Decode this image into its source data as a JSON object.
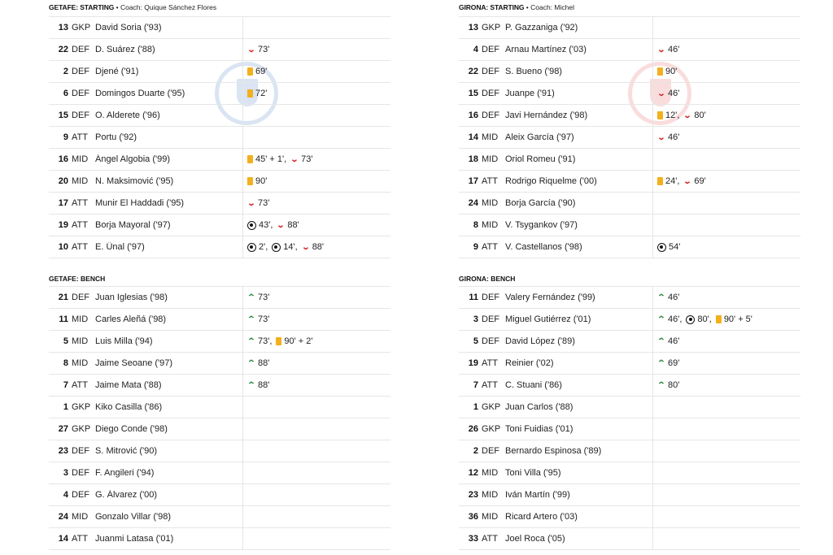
{
  "getafe": {
    "starting_title": "GETAFE: STARTING",
    "coach": "• Coach: Quique Sánchez Flores",
    "bench_title": "GETAFE: BENCH",
    "starting": [
      {
        "num": "13",
        "pos": "GKP",
        "name": "David Soria ('93)",
        "events": []
      },
      {
        "num": "22",
        "pos": "DEF",
        "name": "D. Suárez ('88)",
        "events": [
          {
            "icon": "sub-off-icon",
            "time": "73'"
          }
        ]
      },
      {
        "num": "2",
        "pos": "DEF",
        "name": "Djené ('91)",
        "events": [
          {
            "icon": "yellow-card-icon",
            "time": "69'"
          }
        ]
      },
      {
        "num": "6",
        "pos": "DEF",
        "name": "Domingos Duarte ('95)",
        "events": [
          {
            "icon": "yellow-card-icon",
            "time": "72'"
          }
        ]
      },
      {
        "num": "15",
        "pos": "DEF",
        "name": "O. Alderete ('96)",
        "events": []
      },
      {
        "num": "9",
        "pos": "ATT",
        "name": "Portu ('92)",
        "events": []
      },
      {
        "num": "16",
        "pos": "MID",
        "name": "Ángel Algobia ('99)",
        "events": [
          {
            "icon": "yellow-card-icon",
            "time": "45' + 1',"
          },
          {
            "icon": "sub-off-icon",
            "time": "73'"
          }
        ]
      },
      {
        "num": "20",
        "pos": "MID",
        "name": "N. Maksimović ('95)",
        "events": [
          {
            "icon": "yellow-card-icon",
            "time": "90'"
          }
        ]
      },
      {
        "num": "17",
        "pos": "ATT",
        "name": "Munir El Haddadi ('95)",
        "events": [
          {
            "icon": "sub-off-icon",
            "time": "73'"
          }
        ]
      },
      {
        "num": "19",
        "pos": "ATT",
        "name": "Borja Mayoral ('97)",
        "events": [
          {
            "icon": "goal-icon",
            "time": "43',"
          },
          {
            "icon": "sub-off-icon",
            "time": "88'"
          }
        ]
      },
      {
        "num": "10",
        "pos": "ATT",
        "name": "E. Ünal ('97)",
        "events": [
          {
            "icon": "goal-icon",
            "time": "2',"
          },
          {
            "icon": "goal-icon",
            "time": "14',"
          },
          {
            "icon": "sub-off-icon",
            "time": "88'"
          }
        ]
      }
    ],
    "bench": [
      {
        "num": "21",
        "pos": "DEF",
        "name": "Juan Iglesias ('98)",
        "events": [
          {
            "icon": "sub-on-icon",
            "time": "73'"
          }
        ]
      },
      {
        "num": "11",
        "pos": "MID",
        "name": "Carles Aleñá ('98)",
        "events": [
          {
            "icon": "sub-on-icon",
            "time": "73'"
          }
        ]
      },
      {
        "num": "5",
        "pos": "MID",
        "name": "Luis Milla ('94)",
        "events": [
          {
            "icon": "sub-on-icon",
            "time": "73',"
          },
          {
            "icon": "yellow-card-icon",
            "time": "90' + 2'"
          }
        ]
      },
      {
        "num": "8",
        "pos": "MID",
        "name": "Jaime Seoane ('97)",
        "events": [
          {
            "icon": "sub-on-icon",
            "time": "88'"
          }
        ]
      },
      {
        "num": "7",
        "pos": "ATT",
        "name": "Jaime Mata ('88)",
        "events": [
          {
            "icon": "sub-on-icon",
            "time": "88'"
          }
        ]
      },
      {
        "num": "1",
        "pos": "GKP",
        "name": "Kiko Casilla ('86)",
        "events": []
      },
      {
        "num": "27",
        "pos": "GKP",
        "name": "Diego Conde ('98)",
        "events": []
      },
      {
        "num": "23",
        "pos": "DEF",
        "name": "S. Mitrović ('90)",
        "events": []
      },
      {
        "num": "3",
        "pos": "DEF",
        "name": "F. Angileri ('94)",
        "events": []
      },
      {
        "num": "4",
        "pos": "DEF",
        "name": "G. Álvarez ('00)",
        "events": []
      },
      {
        "num": "24",
        "pos": "MID",
        "name": "Gonzalo Villar ('98)",
        "events": []
      },
      {
        "num": "14",
        "pos": "ATT",
        "name": "Juanmi Latasa ('01)",
        "events": []
      }
    ]
  },
  "girona": {
    "starting_title": "GIRONA: STARTING",
    "coach": "• Coach: Michel",
    "bench_title": "GIRONA: BENCH",
    "starting": [
      {
        "num": "13",
        "pos": "GKP",
        "name": "P. Gazzaniga ('92)",
        "events": []
      },
      {
        "num": "4",
        "pos": "DEF",
        "name": "Arnau Martínez ('03)",
        "events": [
          {
            "icon": "sub-off-icon",
            "time": "46'"
          }
        ]
      },
      {
        "num": "22",
        "pos": "DEF",
        "name": "S. Bueno ('98)",
        "events": [
          {
            "icon": "yellow-card-icon",
            "time": "90'"
          }
        ]
      },
      {
        "num": "15",
        "pos": "DEF",
        "name": "Juanpe ('91)",
        "events": [
          {
            "icon": "sub-off-icon",
            "time": "46'"
          }
        ]
      },
      {
        "num": "16",
        "pos": "DEF",
        "name": "Javi Hernández ('98)",
        "events": [
          {
            "icon": "yellow-card-icon",
            "time": "12',"
          },
          {
            "icon": "sub-off-icon",
            "time": "80'"
          }
        ]
      },
      {
        "num": "14",
        "pos": "MID",
        "name": "Aleix García ('97)",
        "events": [
          {
            "icon": "sub-off-icon",
            "time": "46'"
          }
        ]
      },
      {
        "num": "18",
        "pos": "MID",
        "name": "Oriol Romeu ('91)",
        "events": []
      },
      {
        "num": "17",
        "pos": "ATT",
        "name": "Rodrigo Riquelme ('00)",
        "events": [
          {
            "icon": "yellow-card-icon",
            "time": "24',"
          },
          {
            "icon": "sub-off-icon",
            "time": "69'"
          }
        ]
      },
      {
        "num": "24",
        "pos": "MID",
        "name": "Borja García ('90)",
        "events": []
      },
      {
        "num": "8",
        "pos": "MID",
        "name": "V. Tsygankov ('97)",
        "events": []
      },
      {
        "num": "9",
        "pos": "ATT",
        "name": "V. Castellanos ('98)",
        "events": [
          {
            "icon": "goal-icon",
            "time": "54'"
          }
        ]
      }
    ],
    "bench": [
      {
        "num": "11",
        "pos": "DEF",
        "name": "Valery Fernández ('99)",
        "events": [
          {
            "icon": "sub-on-icon",
            "time": "46'"
          }
        ]
      },
      {
        "num": "3",
        "pos": "DEF",
        "name": "Miguel Gutiérrez ('01)",
        "events": [
          {
            "icon": "sub-on-icon",
            "time": "46',"
          },
          {
            "icon": "goal-icon",
            "time": "80',"
          },
          {
            "icon": "yellow-card-icon",
            "time": "90' + 5'"
          }
        ]
      },
      {
        "num": "5",
        "pos": "DEF",
        "name": "David López ('89)",
        "events": [
          {
            "icon": "sub-on-icon",
            "time": "46'"
          }
        ]
      },
      {
        "num": "19",
        "pos": "ATT",
        "name": "Reinier ('02)",
        "events": [
          {
            "icon": "sub-on-icon",
            "time": "69'"
          }
        ]
      },
      {
        "num": "7",
        "pos": "ATT",
        "name": "C. Stuani ('86)",
        "events": [
          {
            "icon": "sub-on-icon",
            "time": "80'"
          }
        ]
      },
      {
        "num": "1",
        "pos": "GKP",
        "name": "Juan Carlos ('88)",
        "events": []
      },
      {
        "num": "26",
        "pos": "GKP",
        "name": "Toni Fuidias ('01)",
        "events": []
      },
      {
        "num": "2",
        "pos": "DEF",
        "name": "Bernardo Espinosa ('89)",
        "events": []
      },
      {
        "num": "12",
        "pos": "MID",
        "name": "Toni Villa ('95)",
        "events": []
      },
      {
        "num": "23",
        "pos": "MID",
        "name": "Iván Martín ('99)",
        "events": []
      },
      {
        "num": "36",
        "pos": "MID",
        "name": "Ricard Artero ('03)",
        "events": []
      },
      {
        "num": "33",
        "pos": "ATT",
        "name": "Joel Roca ('05)",
        "events": []
      }
    ]
  },
  "colors": {
    "sub_off": "#d21f1f",
    "sub_on": "#2a8a3a",
    "yellow_card": "#f2b01e"
  }
}
